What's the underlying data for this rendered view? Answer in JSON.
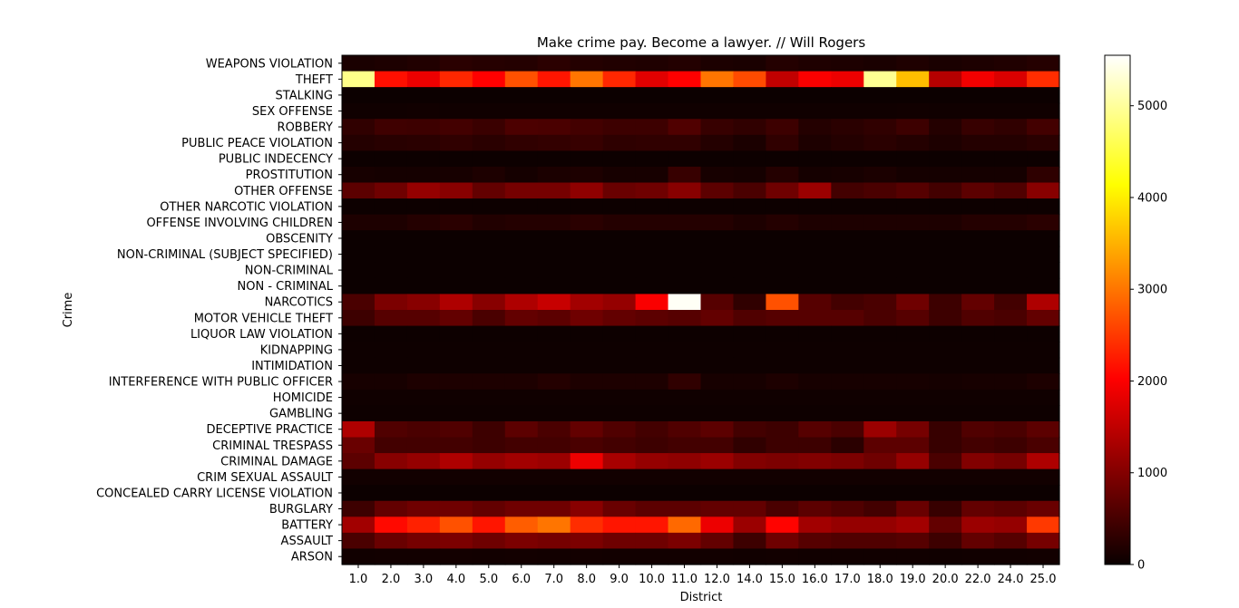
{
  "chart_data": {
    "type": "heatmap",
    "title": "Make crime pay. Become a lawyer. // Will Rogers",
    "xlabel": "District",
    "ylabel": "Crime",
    "colormap": "hot",
    "color_range": [
      0,
      5550
    ],
    "colorbar_ticks": [
      "0",
      "1000",
      "2000",
      "3000",
      "4000",
      "5000"
    ],
    "colorbar_tick_values": [
      0,
      1000,
      2000,
      3000,
      4000,
      5000
    ],
    "x": [
      "1.0",
      "2.0",
      "3.0",
      "4.0",
      "5.0",
      "6.0",
      "7.0",
      "8.0",
      "9.0",
      "10.0",
      "11.0",
      "12.0",
      "14.0",
      "15.0",
      "16.0",
      "17.0",
      "18.0",
      "19.0",
      "20.0",
      "22.0",
      "24.0",
      "25.0"
    ],
    "y": [
      "WEAPONS VIOLATION",
      "THEFT",
      "STALKING",
      "SEX OFFENSE",
      "ROBBERY",
      "PUBLIC PEACE VIOLATION",
      "PUBLIC INDECENCY",
      "PROSTITUTION",
      "OTHER OFFENSE",
      "OTHER NARCOTIC VIOLATION",
      "OFFENSE INVOLVING CHILDREN",
      "OBSCENITY",
      "NON-CRIMINAL (SUBJECT SPECIFIED)",
      "NON-CRIMINAL",
      "NON - CRIMINAL",
      "NARCOTICS",
      "MOTOR VEHICLE THEFT",
      "LIQUOR LAW VIOLATION",
      "KIDNAPPING",
      "INTIMIDATION",
      "INTERFERENCE WITH PUBLIC OFFICER",
      "HOMICIDE",
      "GAMBLING",
      "DECEPTIVE PRACTICE",
      "CRIMINAL TRESPASS",
      "CRIMINAL DAMAGE",
      "CRIM SEXUAL ASSAULT",
      "CONCEALED CARRY LICENSE VIOLATION",
      "BURGLARY",
      "BATTERY",
      "ASSAULT",
      "ARSON"
    ],
    "z": [
      [
        120,
        150,
        180,
        250,
        220,
        200,
        260,
        200,
        180,
        160,
        190,
        140,
        120,
        200,
        160,
        150,
        120,
        160,
        120,
        150,
        170,
        210
      ],
      [
        4900,
        2150,
        1800,
        2350,
        2000,
        2700,
        2200,
        3000,
        2350,
        1700,
        2000,
        3000,
        2650,
        1450,
        1900,
        1800,
        4950,
        3600,
        1350,
        1850,
        1650,
        2400
      ],
      [
        10,
        10,
        10,
        10,
        10,
        10,
        10,
        10,
        10,
        10,
        10,
        10,
        10,
        10,
        10,
        10,
        10,
        10,
        10,
        10,
        10,
        10
      ],
      [
        40,
        40,
        50,
        40,
        40,
        45,
        40,
        40,
        40,
        40,
        40,
        40,
        40,
        40,
        40,
        40,
        40,
        50,
        40,
        40,
        40,
        40
      ],
      [
        300,
        420,
        400,
        450,
        380,
        520,
        500,
        450,
        400,
        400,
        550,
        350,
        300,
        400,
        200,
        250,
        300,
        400,
        200,
        350,
        300,
        450
      ],
      [
        200,
        230,
        250,
        300,
        250,
        300,
        320,
        350,
        280,
        300,
        300,
        200,
        130,
        300,
        150,
        200,
        250,
        200,
        150,
        200,
        200,
        250
      ],
      [
        20,
        20,
        20,
        20,
        20,
        20,
        20,
        20,
        20,
        20,
        20,
        20,
        20,
        20,
        20,
        20,
        20,
        20,
        20,
        20,
        20,
        20
      ],
      [
        100,
        80,
        80,
        100,
        150,
        80,
        130,
        150,
        100,
        100,
        350,
        100,
        80,
        200,
        80,
        100,
        130,
        80,
        80,
        80,
        80,
        280
      ],
      [
        650,
        800,
        1100,
        1000,
        700,
        850,
        850,
        1050,
        750,
        800,
        1000,
        650,
        500,
        800,
        1150,
        450,
        500,
        600,
        450,
        650,
        550,
        1000
      ],
      [
        20,
        20,
        20,
        20,
        20,
        20,
        20,
        20,
        20,
        20,
        20,
        20,
        20,
        20,
        20,
        20,
        20,
        20,
        20,
        20,
        20,
        20
      ],
      [
        150,
        150,
        200,
        250,
        180,
        200,
        200,
        250,
        200,
        200,
        200,
        200,
        150,
        200,
        150,
        150,
        150,
        150,
        150,
        200,
        200,
        250
      ],
      [
        10,
        10,
        10,
        10,
        10,
        10,
        10,
        10,
        10,
        10,
        10,
        10,
        10,
        10,
        10,
        10,
        10,
        10,
        10,
        10,
        10,
        10
      ],
      [
        10,
        10,
        10,
        10,
        10,
        10,
        10,
        10,
        10,
        10,
        10,
        10,
        10,
        10,
        10,
        10,
        10,
        10,
        10,
        10,
        10,
        10
      ],
      [
        10,
        10,
        10,
        10,
        10,
        10,
        10,
        10,
        10,
        10,
        10,
        10,
        10,
        10,
        10,
        10,
        10,
        10,
        10,
        10,
        10,
        10
      ],
      [
        10,
        10,
        10,
        10,
        10,
        10,
        10,
        10,
        10,
        10,
        10,
        10,
        10,
        10,
        10,
        10,
        10,
        10,
        10,
        10,
        10,
        10
      ],
      [
        500,
        900,
        1000,
        1300,
        1000,
        1300,
        1500,
        1200,
        1100,
        1900,
        5500,
        600,
        300,
        2700,
        600,
        450,
        500,
        800,
        400,
        700,
        450,
        1300
      ],
      [
        400,
        600,
        600,
        700,
        500,
        700,
        650,
        800,
        700,
        650,
        600,
        700,
        550,
        600,
        600,
        600,
        500,
        600,
        400,
        550,
        500,
        700
      ],
      [
        20,
        20,
        20,
        20,
        20,
        20,
        20,
        20,
        20,
        20,
        20,
        20,
        20,
        20,
        20,
        20,
        20,
        20,
        20,
        20,
        20,
        20
      ],
      [
        30,
        30,
        30,
        30,
        30,
        30,
        30,
        30,
        30,
        30,
        30,
        30,
        30,
        30,
        30,
        30,
        30,
        30,
        30,
        30,
        30,
        30
      ],
      [
        30,
        30,
        30,
        30,
        30,
        30,
        30,
        30,
        30,
        30,
        30,
        30,
        30,
        30,
        30,
        30,
        30,
        30,
        30,
        30,
        30,
        30
      ],
      [
        100,
        100,
        150,
        150,
        150,
        150,
        200,
        150,
        150,
        150,
        300,
        100,
        100,
        150,
        100,
        100,
        100,
        100,
        80,
        100,
        100,
        150
      ],
      [
        40,
        40,
        40,
        40,
        40,
        40,
        40,
        40,
        40,
        40,
        40,
        40,
        40,
        40,
        40,
        40,
        40,
        40,
        40,
        40,
        40,
        40
      ],
      [
        30,
        30,
        30,
        30,
        30,
        30,
        30,
        30,
        30,
        30,
        30,
        30,
        30,
        30,
        30,
        30,
        30,
        30,
        30,
        30,
        30,
        30
      ],
      [
        1300,
        550,
        500,
        550,
        400,
        650,
        500,
        700,
        550,
        450,
        550,
        650,
        450,
        400,
        600,
        500,
        1150,
        850,
        350,
        550,
        500,
        650
      ],
      [
        750,
        450,
        450,
        450,
        400,
        450,
        450,
        500,
        450,
        400,
        450,
        450,
        300,
        400,
        400,
        250,
        650,
        650,
        350,
        450,
        400,
        500
      ],
      [
        650,
        1000,
        1100,
        1300,
        1100,
        1200,
        1150,
        1800,
        1250,
        1100,
        1050,
        1150,
        950,
        900,
        950,
        900,
        800,
        1100,
        500,
        950,
        850,
        1300
      ],
      [
        60,
        60,
        60,
        60,
        60,
        60,
        60,
        60,
        60,
        60,
        60,
        60,
        60,
        60,
        60,
        60,
        60,
        60,
        60,
        60,
        60,
        60
      ],
      [
        10,
        10,
        10,
        10,
        10,
        10,
        10,
        10,
        10,
        10,
        10,
        10,
        10,
        10,
        10,
        10,
        10,
        10,
        10,
        10,
        10,
        10
      ],
      [
        400,
        700,
        800,
        800,
        700,
        800,
        800,
        1000,
        750,
        650,
        650,
        700,
        700,
        500,
        650,
        550,
        450,
        750,
        350,
        700,
        650,
        750
      ],
      [
        1200,
        2100,
        2300,
        2700,
        2200,
        2800,
        3000,
        2400,
        2200,
        2200,
        2900,
        1800,
        1150,
        2050,
        1200,
        1100,
        1100,
        1200,
        700,
        1150,
        1100,
        2500
      ],
      [
        500,
        750,
        850,
        900,
        800,
        900,
        850,
        900,
        800,
        800,
        900,
        700,
        400,
        800,
        600,
        550,
        550,
        600,
        400,
        700,
        600,
        850
      ],
      [
        50,
        60,
        60,
        70,
        60,
        70,
        60,
        70,
        60,
        60,
        60,
        60,
        50,
        60,
        50,
        50,
        50,
        50,
        40,
        50,
        50,
        60
      ]
    ]
  }
}
